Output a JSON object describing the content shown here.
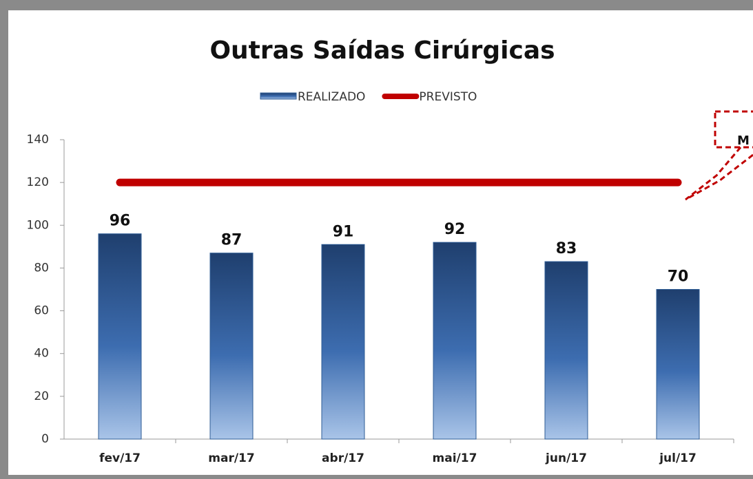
{
  "chart_data": {
    "type": "bar",
    "title": "Outras Saídas Cirúrgicas",
    "categories": [
      "fev/17",
      "mar/17",
      "abr/17",
      "mai/17",
      "jun/17",
      "jul/17"
    ],
    "series": [
      {
        "name": "REALIZADO",
        "type": "bar",
        "color": "#2f5d96",
        "values": [
          96,
          87,
          91,
          92,
          83,
          70
        ]
      },
      {
        "name": "PREVISTO",
        "type": "line",
        "color": "#c00000",
        "values": [
          120,
          120,
          120,
          120,
          120,
          120
        ]
      }
    ],
    "annotation": "M",
    "ylim": [
      0,
      140
    ],
    "yticks": [
      0,
      20,
      40,
      60,
      80,
      100,
      120,
      140
    ],
    "grid": false,
    "legend": "top"
  }
}
